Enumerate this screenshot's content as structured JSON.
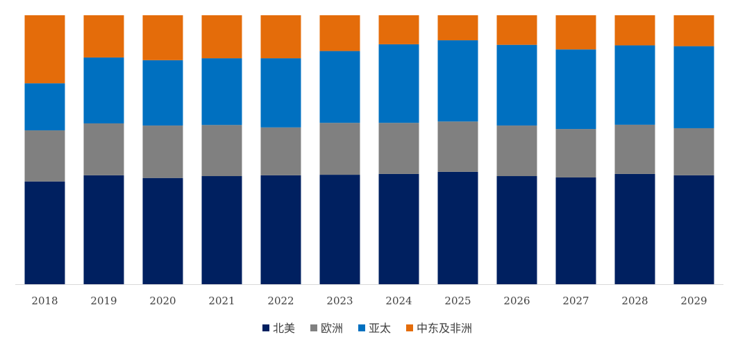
{
  "chart_data": {
    "type": "bar",
    "stacked": true,
    "normalized": true,
    "ylim": [
      0,
      1
    ],
    "grid": false,
    "legend_position": "bottom",
    "categories": [
      "2018",
      "2019",
      "2020",
      "2021",
      "2022",
      "2023",
      "2024",
      "2025",
      "2026",
      "2027",
      "2028",
      "2029"
    ],
    "series": [
      {
        "name": "北美",
        "color": "#002060",
        "values": [
          0.382,
          0.405,
          0.395,
          0.402,
          0.405,
          0.407,
          0.41,
          0.418,
          0.402,
          0.397,
          0.41,
          0.405
        ]
      },
      {
        "name": "欧洲",
        "color": "#808080",
        "values": [
          0.19,
          0.193,
          0.195,
          0.19,
          0.178,
          0.193,
          0.19,
          0.187,
          0.188,
          0.18,
          0.183,
          0.175
        ]
      },
      {
        "name": "亚太",
        "color": "#0070C0",
        "values": [
          0.175,
          0.245,
          0.243,
          0.248,
          0.257,
          0.267,
          0.292,
          0.302,
          0.3,
          0.296,
          0.295,
          0.305
        ]
      },
      {
        "name": "中东及非洲",
        "color": "#E46C0A",
        "values": [
          0.253,
          0.157,
          0.167,
          0.16,
          0.16,
          0.133,
          0.108,
          0.093,
          0.11,
          0.127,
          0.112,
          0.115
        ]
      }
    ]
  }
}
